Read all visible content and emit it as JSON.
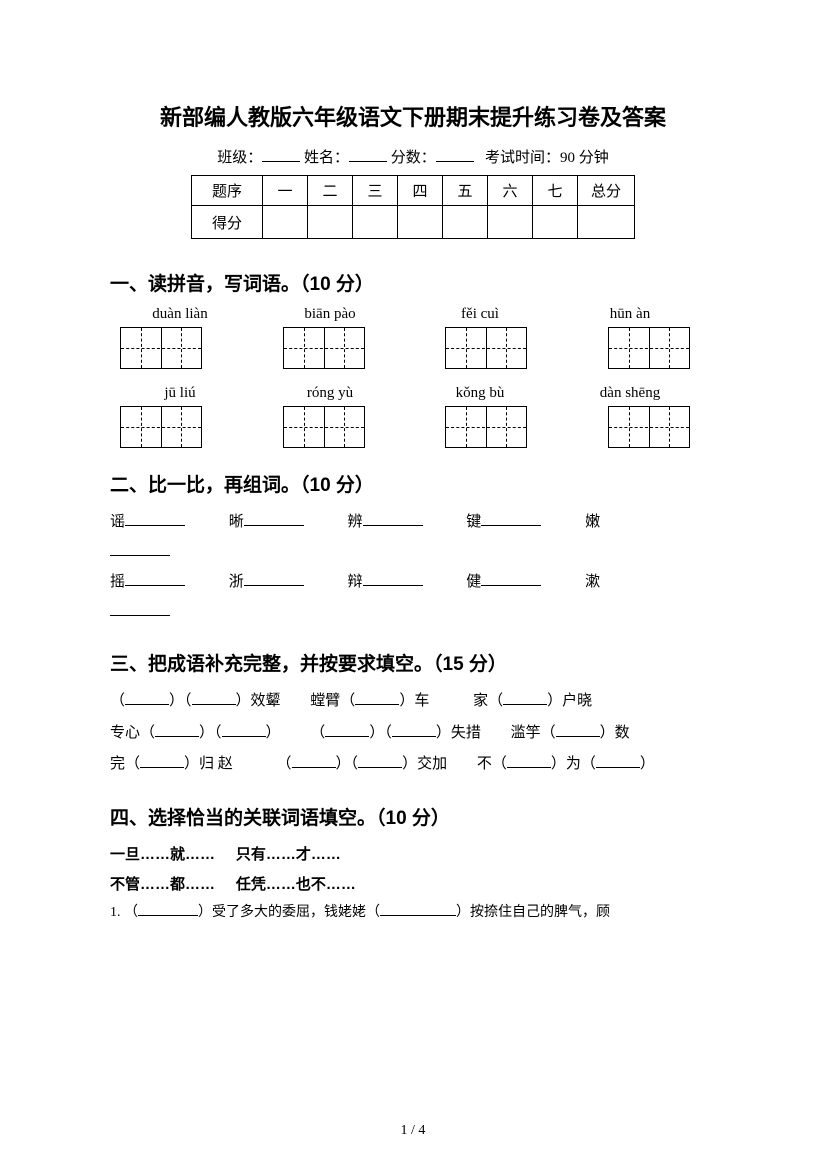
{
  "title": "新部编人教版六年级语文下册期末提升练习卷及答案",
  "info": {
    "class_label": "班级：",
    "name_label": "姓名：",
    "score_label": "分数：",
    "time_label": "考试时间：90 分钟"
  },
  "score_table": {
    "row1": [
      "题序",
      "一",
      "二",
      "三",
      "四",
      "五",
      "六",
      "七",
      "总分"
    ],
    "row2_label": "得分"
  },
  "section1": {
    "heading": "一、读拼音，写词语。（10 分）",
    "row1_pinyin": [
      "duàn liàn",
      "biān pào",
      "fěi cuì",
      "hūn àn"
    ],
    "row2_pinyin": [
      "jū liú",
      "róng yù",
      "kǒng bù",
      "dàn shēng"
    ]
  },
  "section2": {
    "heading": "二、比一比，再组词。（10 分）",
    "pairs_top": [
      "谣",
      "晰",
      "辨",
      "键",
      "嫩"
    ],
    "pairs_bottom": [
      "摇",
      "浙",
      "辩",
      "健",
      "漱"
    ]
  },
  "section3": {
    "heading": "三、把成语补充完整，并按要求填空。（15 分）",
    "items": {
      "i1a": "（",
      "i1b": "）（",
      "i1c": "）效颦",
      "i2a": "螳臂（",
      "i2b": "）车",
      "i3a": "家（",
      "i3b": "）户晓",
      "i4a": "专心（",
      "i4b": "）（",
      "i4c": "）",
      "i5a": "（",
      "i5b": "）（",
      "i5c": "）失措",
      "i6a": "滥竽（",
      "i6b": "）数",
      "i7a": "完（",
      "i7b": "）归 赵",
      "i8a": "（",
      "i8b": "）（",
      "i8c": "）交加",
      "i9a": "不（",
      "i9b": "）为（",
      "i9c": "）"
    }
  },
  "section4": {
    "heading": "四、选择恰当的关联词语填空。（10 分）",
    "conj1": "一旦……就……",
    "conj2": "只有……才……",
    "conj3": "不管……都……",
    "conj4": "任凭……也不……",
    "q1_pre": "1.  （",
    "q1_mid": "）受了多大的委屈，钱姥姥（",
    "q1_post": "）按捺住自己的脾气，顾"
  },
  "page_number": "1 / 4"
}
